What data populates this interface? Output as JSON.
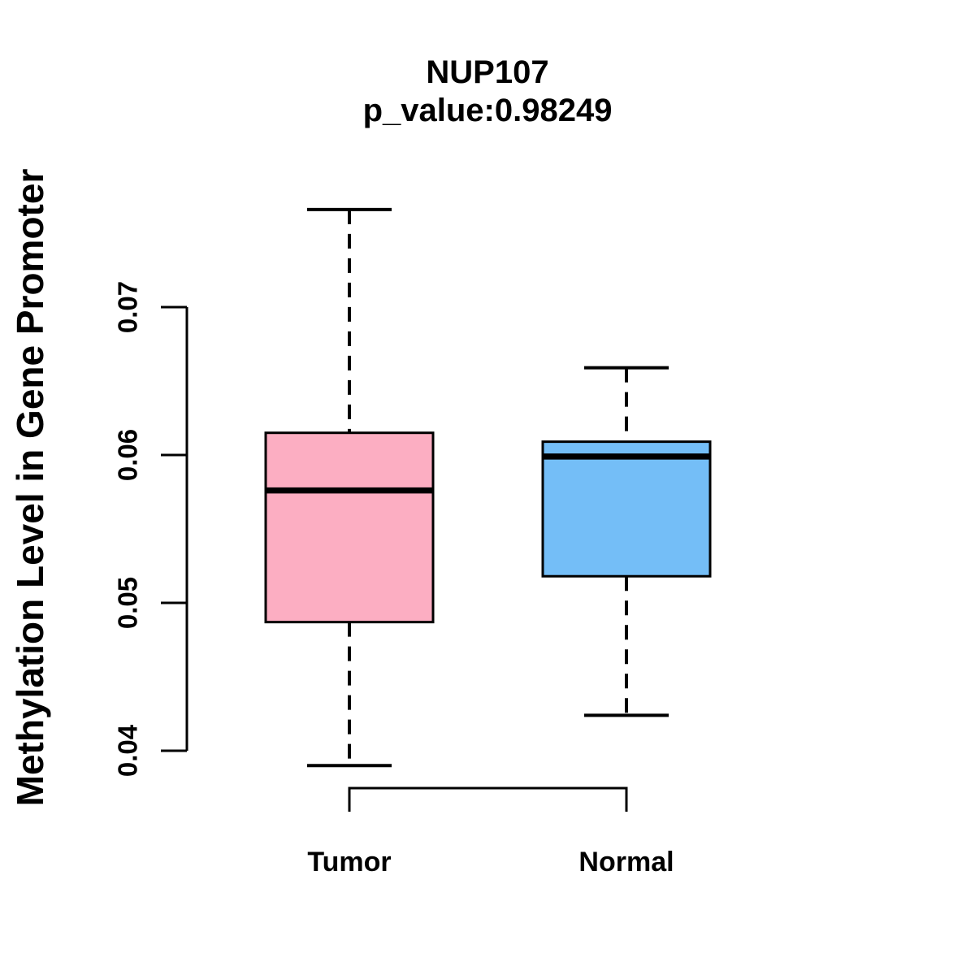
{
  "chart_data": {
    "type": "boxplot",
    "title": "NUP107",
    "subtitle": "p_value:0.98249",
    "ylabel": "Methylation Level in Gene Promoter",
    "xlabel": "",
    "y_ticks": [
      "0.04",
      "0.05",
      "0.06",
      "0.07"
    ],
    "ylim": [
      0.04,
      0.07
    ],
    "grid": "off",
    "legend": "none",
    "categories": [
      "Tumor",
      "Normal"
    ],
    "groups": [
      {
        "label": "Tumor",
        "color": "#FCAEC2",
        "whisker_low": 0.039,
        "q1": 0.0487,
        "median": 0.0576,
        "q3": 0.0615,
        "whisker_high": 0.0766
      },
      {
        "label": "Normal",
        "color": "#74BEF7",
        "whisker_low": 0.0424,
        "q1": 0.0518,
        "median": 0.0599,
        "q3": 0.0609,
        "whisker_high": 0.0659
      }
    ],
    "colors": {
      "stroke": "#000000",
      "background": "#ffffff",
      "tumor_fill": "#FCAEC2",
      "normal_fill": "#74BEF7"
    }
  }
}
